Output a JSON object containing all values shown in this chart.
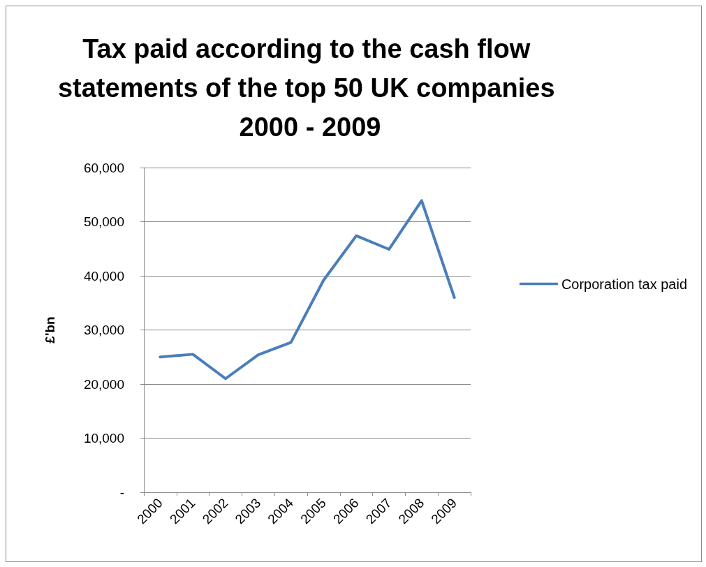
{
  "chart_data": {
    "type": "line",
    "title": "Tax paid according to the cash flow statements of the top 50 UK companies 2000 - 2009",
    "ylabel": "£'bn",
    "categories": [
      "2000",
      "2001",
      "2002",
      "2003",
      "2004",
      "2005",
      "2006",
      "2007",
      "2008",
      "2009"
    ],
    "series": [
      {
        "name": "Corporation tax paid",
        "color": "#4a7ebb",
        "values": [
          25000,
          25500,
          21000,
          25400,
          27700,
          39200,
          47400,
          44900,
          53900,
          36000
        ]
      }
    ],
    "ylim": [
      0,
      60000
    ],
    "yticks": [
      {
        "value": 0,
        "label": "-"
      },
      {
        "value": 10000,
        "label": "10,000"
      },
      {
        "value": 20000,
        "label": "20,000"
      },
      {
        "value": 30000,
        "label": "30,000"
      },
      {
        "value": 40000,
        "label": "40,000"
      },
      {
        "value": 50000,
        "label": "50,000"
      },
      {
        "value": 60000,
        "label": "60,000"
      }
    ],
    "grid": "y",
    "legend": "right",
    "marker": "none",
    "line_style": "solid"
  }
}
